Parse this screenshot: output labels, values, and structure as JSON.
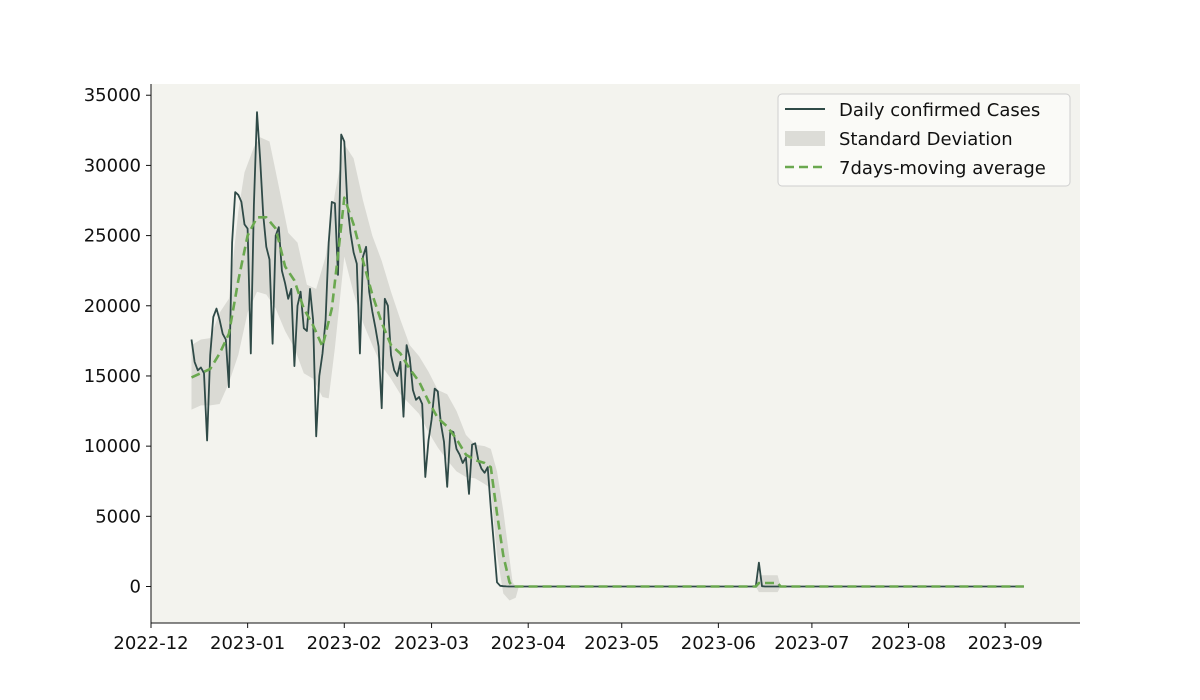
{
  "chart_data": {
    "type": "line",
    "title": "",
    "xlabel": "",
    "ylabel": "",
    "xlim": [
      "2022-12-01",
      "2023-09-25"
    ],
    "ylim": [
      -2600,
      35800
    ],
    "x_ticks": [
      "2022-12",
      "2023-01",
      "2023-02",
      "2023-03",
      "2023-04",
      "2023-05",
      "2023-06",
      "2023-07",
      "2023-08",
      "2023-09"
    ],
    "y_ticks": [
      0,
      5000,
      10000,
      15000,
      20000,
      25000,
      30000,
      35000
    ],
    "grid": false,
    "legend_position": "top-right",
    "background_color": "#f3f3ee",
    "colors": {
      "daily": "#2f4a47",
      "std_fill": "#cfcfc9",
      "moving_avg": "#6aa84f"
    },
    "legend": [
      "Daily confirmed Cases",
      "Standard Deviation",
      "7days-moving average"
    ],
    "series": [
      {
        "name": "Daily confirmed Cases",
        "points": [
          [
            "2022-12-14",
            17600
          ],
          [
            "2022-12-15",
            16000
          ],
          [
            "2022-12-16",
            15400
          ],
          [
            "2022-12-17",
            15600
          ],
          [
            "2022-12-18",
            15200
          ],
          [
            "2022-12-19",
            10400
          ],
          [
            "2022-12-20",
            16500
          ],
          [
            "2022-12-21",
            19200
          ],
          [
            "2022-12-22",
            19800
          ],
          [
            "2022-12-23",
            19000
          ],
          [
            "2022-12-24",
            18000
          ],
          [
            "2022-12-25",
            17600
          ],
          [
            "2022-12-26",
            14200
          ],
          [
            "2022-12-27",
            24500
          ],
          [
            "2022-12-28",
            28100
          ],
          [
            "2022-12-29",
            27900
          ],
          [
            "2022-12-30",
            27400
          ],
          [
            "2022-12-31",
            25800
          ],
          [
            "2023-01-01",
            25500
          ],
          [
            "2023-01-02",
            16600
          ],
          [
            "2023-01-03",
            27200
          ],
          [
            "2023-01-04",
            33800
          ],
          [
            "2023-01-05",
            30500
          ],
          [
            "2023-01-06",
            26500
          ],
          [
            "2023-01-07",
            24200
          ],
          [
            "2023-01-08",
            23300
          ],
          [
            "2023-01-09",
            17300
          ],
          [
            "2023-01-10",
            25000
          ],
          [
            "2023-01-11",
            25600
          ],
          [
            "2023-01-12",
            22500
          ],
          [
            "2023-01-13",
            21600
          ],
          [
            "2023-01-14",
            20500
          ],
          [
            "2023-01-15",
            21200
          ],
          [
            "2023-01-16",
            15700
          ],
          [
            "2023-01-17",
            20000
          ],
          [
            "2023-01-18",
            21000
          ],
          [
            "2023-01-19",
            18400
          ],
          [
            "2023-01-20",
            18200
          ],
          [
            "2023-01-21",
            21200
          ],
          [
            "2023-01-22",
            19000
          ],
          [
            "2023-01-23",
            10700
          ],
          [
            "2023-01-24",
            15000
          ],
          [
            "2023-01-25",
            16600
          ],
          [
            "2023-01-26",
            19000
          ],
          [
            "2023-01-27",
            24500
          ],
          [
            "2023-01-28",
            27400
          ],
          [
            "2023-01-29",
            27300
          ],
          [
            "2023-01-30",
            22200
          ],
          [
            "2023-01-31",
            32200
          ],
          [
            "2023-02-01",
            31700
          ],
          [
            "2023-02-02",
            27200
          ],
          [
            "2023-02-03",
            25200
          ],
          [
            "2023-02-04",
            23800
          ],
          [
            "2023-02-05",
            23000
          ],
          [
            "2023-02-06",
            16600
          ],
          [
            "2023-02-07",
            23500
          ],
          [
            "2023-02-08",
            24200
          ],
          [
            "2023-02-09",
            21000
          ],
          [
            "2023-02-10",
            19600
          ],
          [
            "2023-02-11",
            18400
          ],
          [
            "2023-02-12",
            17100
          ],
          [
            "2023-02-13",
            12700
          ],
          [
            "2023-02-14",
            20500
          ],
          [
            "2023-02-15",
            20000
          ],
          [
            "2023-02-16",
            16500
          ],
          [
            "2023-02-17",
            15400
          ],
          [
            "2023-02-18",
            15000
          ],
          [
            "2023-02-19",
            16000
          ],
          [
            "2023-02-20",
            12100
          ],
          [
            "2023-02-21",
            17200
          ],
          [
            "2023-02-22",
            16300
          ],
          [
            "2023-02-23",
            14000
          ],
          [
            "2023-02-24",
            13300
          ],
          [
            "2023-02-25",
            13500
          ],
          [
            "2023-02-26",
            13000
          ],
          [
            "2023-02-27",
            7800
          ],
          [
            "2023-02-28",
            10400
          ],
          [
            "2023-03-01",
            11900
          ],
          [
            "2023-03-02",
            14100
          ],
          [
            "2023-03-03",
            13900
          ],
          [
            "2023-03-04",
            11600
          ],
          [
            "2023-03-05",
            10300
          ],
          [
            "2023-03-06",
            7100
          ],
          [
            "2023-03-07",
            11100
          ],
          [
            "2023-03-08",
            11000
          ],
          [
            "2023-03-09",
            9800
          ],
          [
            "2023-03-10",
            9400
          ],
          [
            "2023-03-11",
            8800
          ],
          [
            "2023-03-12",
            9200
          ],
          [
            "2023-03-13",
            6600
          ],
          [
            "2023-03-14",
            10100
          ],
          [
            "2023-03-15",
            10200
          ],
          [
            "2023-03-16",
            9000
          ],
          [
            "2023-03-17",
            8400
          ],
          [
            "2023-03-18",
            8100
          ],
          [
            "2023-03-19",
            8500
          ],
          [
            "2023-03-20",
            5600
          ],
          [
            "2023-03-21",
            3000
          ],
          [
            "2023-03-22",
            300
          ],
          [
            "2023-03-23",
            50
          ],
          [
            "2023-03-24",
            20
          ],
          [
            "2023-03-25",
            10
          ],
          [
            "2023-03-26",
            0
          ],
          [
            "2023-04-01",
            0
          ],
          [
            "2023-05-01",
            0
          ],
          [
            "2023-06-01",
            0
          ],
          [
            "2023-06-13",
            0
          ],
          [
            "2023-06-14",
            1700
          ],
          [
            "2023-06-15",
            20
          ],
          [
            "2023-06-16",
            0
          ],
          [
            "2023-07-01",
            0
          ],
          [
            "2023-08-01",
            0
          ],
          [
            "2023-09-01",
            0
          ],
          [
            "2023-09-07",
            0
          ]
        ]
      },
      {
        "name": "7days-moving average",
        "points": [
          [
            "2022-12-14",
            14900
          ],
          [
            "2022-12-17",
            15200
          ],
          [
            "2022-12-20",
            15500
          ],
          [
            "2022-12-23",
            16600
          ],
          [
            "2022-12-26",
            18000
          ],
          [
            "2022-12-29",
            21800
          ],
          [
            "2023-01-01",
            25000
          ],
          [
            "2023-01-04",
            26300
          ],
          [
            "2023-01-07",
            26300
          ],
          [
            "2023-01-10",
            25500
          ],
          [
            "2023-01-13",
            22800
          ],
          [
            "2023-01-16",
            21800
          ],
          [
            "2023-01-19",
            19800
          ],
          [
            "2023-01-22",
            18600
          ],
          [
            "2023-01-25",
            17100
          ],
          [
            "2023-01-28",
            19800
          ],
          [
            "2023-01-30",
            23600
          ],
          [
            "2023-02-01",
            27700
          ],
          [
            "2023-02-04",
            25800
          ],
          [
            "2023-02-07",
            23200
          ],
          [
            "2023-02-10",
            20800
          ],
          [
            "2023-02-13",
            18800
          ],
          [
            "2023-02-16",
            17200
          ],
          [
            "2023-02-19",
            16600
          ],
          [
            "2023-02-22",
            15500
          ],
          [
            "2023-02-25",
            14600
          ],
          [
            "2023-02-28",
            13200
          ],
          [
            "2023-03-03",
            12000
          ],
          [
            "2023-03-06",
            11400
          ],
          [
            "2023-03-09",
            10500
          ],
          [
            "2023-03-12",
            9400
          ],
          [
            "2023-03-15",
            9000
          ],
          [
            "2023-03-18",
            8800
          ],
          [
            "2023-03-20",
            8500
          ],
          [
            "2023-03-22",
            5200
          ],
          [
            "2023-03-24",
            2200
          ],
          [
            "2023-03-26",
            300
          ],
          [
            "2023-03-27",
            0
          ],
          [
            "2023-04-01",
            0
          ],
          [
            "2023-06-13",
            0
          ],
          [
            "2023-06-14",
            250
          ],
          [
            "2023-06-20",
            250
          ],
          [
            "2023-06-21",
            0
          ],
          [
            "2023-09-07",
            0
          ]
        ]
      },
      {
        "name": "Standard Deviation",
        "upper": [
          [
            "2022-12-14",
            17200
          ],
          [
            "2022-12-17",
            17600
          ],
          [
            "2022-12-20",
            17700
          ],
          [
            "2022-12-23",
            19500
          ],
          [
            "2022-12-26",
            20500
          ],
          [
            "2022-12-29",
            26700
          ],
          [
            "2022-12-31",
            29500
          ],
          [
            "2023-01-03",
            31300
          ],
          [
            "2023-01-05",
            32000
          ],
          [
            "2023-01-08",
            31700
          ],
          [
            "2023-01-11",
            28500
          ],
          [
            "2023-01-14",
            25200
          ],
          [
            "2023-01-17",
            24500
          ],
          [
            "2023-01-20",
            21500
          ],
          [
            "2023-01-23",
            21200
          ],
          [
            "2023-01-26",
            23500
          ],
          [
            "2023-01-29",
            28000
          ],
          [
            "2023-02-01",
            31500
          ],
          [
            "2023-02-04",
            30500
          ],
          [
            "2023-02-07",
            27500
          ],
          [
            "2023-02-10",
            25000
          ],
          [
            "2023-02-13",
            23200
          ],
          [
            "2023-02-16",
            21000
          ],
          [
            "2023-02-19",
            19000
          ],
          [
            "2023-02-22",
            17200
          ],
          [
            "2023-02-25",
            16400
          ],
          [
            "2023-02-28",
            15300
          ],
          [
            "2023-03-03",
            14000
          ],
          [
            "2023-03-06",
            13700
          ],
          [
            "2023-03-09",
            12500
          ],
          [
            "2023-03-12",
            10800
          ],
          [
            "2023-03-15",
            10100
          ],
          [
            "2023-03-18",
            10000
          ],
          [
            "2023-03-20",
            9800
          ],
          [
            "2023-03-22",
            8200
          ],
          [
            "2023-03-24",
            5400
          ],
          [
            "2023-03-26",
            2000
          ],
          [
            "2023-03-27",
            300
          ],
          [
            "2023-03-28",
            0
          ],
          [
            "2023-06-13",
            0
          ],
          [
            "2023-06-14",
            800
          ],
          [
            "2023-06-20",
            800
          ],
          [
            "2023-06-21",
            0
          ],
          [
            "2023-09-07",
            0
          ]
        ],
        "lower": [
          [
            "2022-12-14",
            12600
          ],
          [
            "2022-12-17",
            12900
          ],
          [
            "2022-12-20",
            12900
          ],
          [
            "2022-12-23",
            13000
          ],
          [
            "2022-12-26",
            14500
          ],
          [
            "2022-12-29",
            16500
          ],
          [
            "2023-01-01",
            19500
          ],
          [
            "2023-01-04",
            21000
          ],
          [
            "2023-01-07",
            20800
          ],
          [
            "2023-01-10",
            19800
          ],
          [
            "2023-01-13",
            18200
          ],
          [
            "2023-01-16",
            17000
          ],
          [
            "2023-01-19",
            15200
          ],
          [
            "2023-01-22",
            14800
          ],
          [
            "2023-01-25",
            13500
          ],
          [
            "2023-01-27",
            13400
          ],
          [
            "2023-01-29",
            17000
          ],
          [
            "2023-02-01",
            23500
          ],
          [
            "2023-02-04",
            20900
          ],
          [
            "2023-02-07",
            18800
          ],
          [
            "2023-02-10",
            17200
          ],
          [
            "2023-02-13",
            15700
          ],
          [
            "2023-02-16",
            14800
          ],
          [
            "2023-02-19",
            13700
          ],
          [
            "2023-02-22",
            13000
          ],
          [
            "2023-02-25",
            12300
          ],
          [
            "2023-02-28",
            11000
          ],
          [
            "2023-03-03",
            9900
          ],
          [
            "2023-03-06",
            9000
          ],
          [
            "2023-03-09",
            8200
          ],
          [
            "2023-03-12",
            7800
          ],
          [
            "2023-03-15",
            7700
          ],
          [
            "2023-03-18",
            7300
          ],
          [
            "2023-03-20",
            7000
          ],
          [
            "2023-03-22",
            2300
          ],
          [
            "2023-03-24",
            -500
          ],
          [
            "2023-03-26",
            -1000
          ],
          [
            "2023-03-28",
            -800
          ],
          [
            "2023-03-29",
            0
          ],
          [
            "2023-06-13",
            0
          ],
          [
            "2023-06-14",
            -400
          ],
          [
            "2023-06-20",
            -400
          ],
          [
            "2023-06-21",
            0
          ],
          [
            "2023-09-07",
            0
          ]
        ]
      }
    ]
  }
}
